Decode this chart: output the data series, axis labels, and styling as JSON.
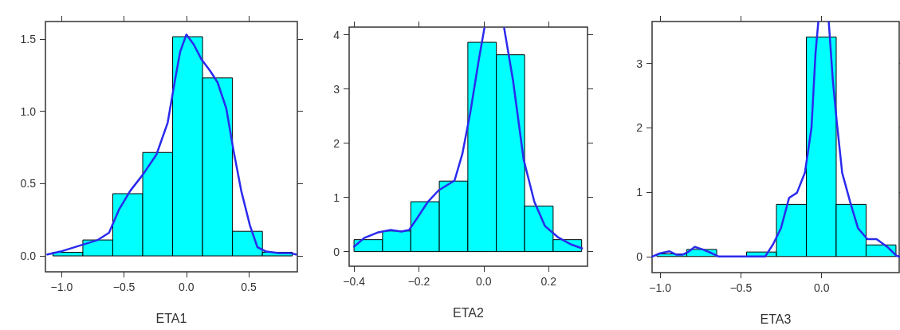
{
  "chart_data": [
    {
      "type": "histogram",
      "xlabel": "ETA1",
      "bins": [
        -1.07,
        -0.83,
        -0.59,
        -0.35,
        -0.11,
        0.13,
        0.37,
        0.61,
        0.85
      ],
      "values": [
        0.025,
        0.11,
        0.43,
        0.715,
        1.515,
        1.23,
        0.17,
        0.025
      ],
      "color": "#00ffff",
      "series": [
        {
          "type": "line",
          "color": "#2a2aee",
          "x": [
            -1.115,
            -1.01,
            -0.86,
            -0.71,
            -0.62,
            -0.54,
            -0.45,
            -0.35,
            -0.24,
            -0.15,
            -0.09,
            -0.05,
            0.0,
            0.06,
            0.12,
            0.19,
            0.25,
            0.32,
            0.38,
            0.44,
            0.51,
            0.57,
            0.64,
            0.74,
            0.83,
            0.88
          ],
          "values": [
            0.01,
            0.03,
            0.07,
            0.11,
            0.16,
            0.32,
            0.45,
            0.56,
            0.7,
            0.92,
            1.22,
            1.41,
            1.53,
            1.46,
            1.36,
            1.28,
            1.2,
            1.02,
            0.72,
            0.45,
            0.21,
            0.06,
            0.03,
            0.02,
            0.02,
            0.01
          ]
        }
      ],
      "xlim": [
        -1.13,
        0.89
      ],
      "ylim": [
        -0.11,
        1.62
      ],
      "xticks": [
        {
          "value": -1,
          "label": "−1.0"
        },
        {
          "value": -0.5,
          "label": "−0.5"
        },
        {
          "value": 0,
          "label": "0.0"
        },
        0.5
      ],
      "yticks": [
        {
          "value": 0,
          "label": "0.0"
        },
        0.5,
        {
          "value": 1,
          "label": "1.0"
        },
        1.5
      ]
    },
    {
      "type": "histogram",
      "xlabel": "ETA2",
      "bins": [
        -0.4,
        -0.312,
        -0.225,
        -0.137,
        -0.049,
        0.039,
        0.126,
        0.214,
        0.302
      ],
      "values": [
        0.22,
        0.38,
        0.92,
        1.3,
        3.86,
        3.63,
        0.84,
        0.22
      ],
      "color": "#00ffff",
      "series": [
        {
          "type": "line",
          "color": "#2a2aee",
          "x": [
            -0.4,
            -0.369,
            -0.328,
            -0.287,
            -0.254,
            -0.23,
            -0.205,
            -0.172,
            -0.139,
            -0.09,
            -0.066,
            -0.041,
            -0.016,
            0.002,
            0.035,
            0.063,
            0.09,
            0.123,
            0.156,
            0.189,
            0.23,
            0.27,
            0.303
          ],
          "values": [
            0.09,
            0.25,
            0.35,
            0.4,
            0.37,
            0.4,
            0.62,
            0.92,
            1.13,
            1.31,
            1.8,
            2.58,
            3.51,
            4.12,
            null,
            4.12,
            3.17,
            1.7,
            0.92,
            0.47,
            0.26,
            0.13,
            0.06
          ]
        }
      ],
      "xlim": [
        -0.415,
        0.32
      ],
      "ylim": [
        -0.27,
        4.14
      ],
      "xticks": [
        {
          "value": -0.4,
          "label": "−0.4"
        },
        {
          "value": -0.2,
          "label": "−0.2"
        },
        {
          "value": 0,
          "label": "0.0"
        },
        0.2
      ],
      "yticks": [
        0,
        1,
        2,
        3,
        4
      ]
    },
    {
      "type": "histogram",
      "xlabel": "ETA3",
      "bins": [
        -1.02,
        -0.835,
        -0.65,
        -0.465,
        -0.28,
        -0.095,
        0.09,
        0.275,
        0.46
      ],
      "values": [
        0.04,
        0.11,
        0,
        0.07,
        0.81,
        3.41,
        0.81,
        0.18
      ],
      "color": "#00ffff",
      "series": [
        {
          "type": "line",
          "color": "#2a2aee",
          "x": [
            -1.049,
            -1.0,
            -0.942,
            -0.901,
            -0.86,
            -0.827,
            -0.786,
            -0.737,
            -0.679,
            -0.638,
            -0.35,
            -0.301,
            -0.252,
            -0.202,
            -0.153,
            -0.104,
            -0.063,
            -0.038,
            -0.021,
            0.01,
            0.044,
            0.069,
            0.094,
            0.127,
            0.176,
            0.225,
            0.283,
            0.34,
            0.406,
            0.464,
            0.48
          ],
          "values": [
            0,
            0.05,
            0.08,
            0.03,
            0.03,
            0.07,
            0.15,
            0.11,
            0.05,
            0,
            0,
            0.19,
            0.44,
            0.91,
            0.99,
            1.3,
            2.0,
            3.16,
            3.64,
            null,
            3.64,
            2.74,
            2.08,
            1.3,
            0.85,
            0.44,
            0.27,
            0.27,
            0.15,
            0.01,
            0
          ]
        }
      ],
      "xlim": [
        -1.05,
        0.48
      ],
      "ylim": [
        -0.25,
        3.65
      ],
      "xticks": [
        {
          "value": -1,
          "label": "−1.0"
        },
        {
          "value": -0.5,
          "label": "−0.5"
        },
        {
          "value": 0,
          "label": "0.0"
        }
      ],
      "yticks": [
        0,
        1,
        2,
        3
      ]
    }
  ]
}
